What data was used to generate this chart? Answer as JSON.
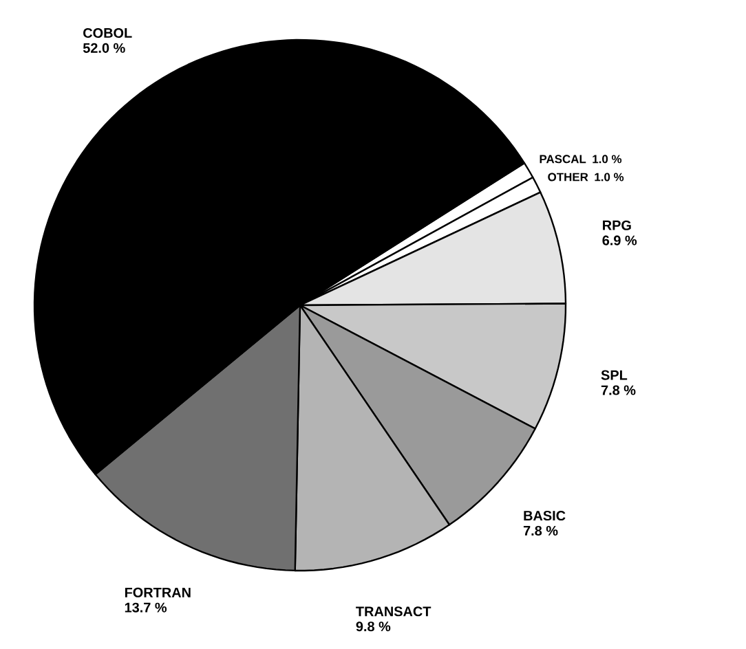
{
  "chart_data": {
    "type": "pie",
    "categories": [
      "PASCAL",
      "OTHER",
      "RPG",
      "SPL",
      "BASIC",
      "TRANSACT",
      "FORTRAN",
      "COBOL"
    ],
    "values": [
      1.0,
      1.0,
      6.9,
      7.8,
      7.8,
      9.8,
      13.7,
      52.0
    ],
    "value_labels": [
      "1.0 %",
      "1.0 %",
      "6.9 %",
      "7.8 %",
      "7.8 %",
      "9.8 %",
      "13.7 %",
      "52.0 %"
    ],
    "colors": [
      "#ffffff",
      "#ffffff",
      "#e4e4e4",
      "#c8c8c8",
      "#9a9a9a",
      "#b4b4b4",
      "#707070",
      "#000000"
    ]
  }
}
